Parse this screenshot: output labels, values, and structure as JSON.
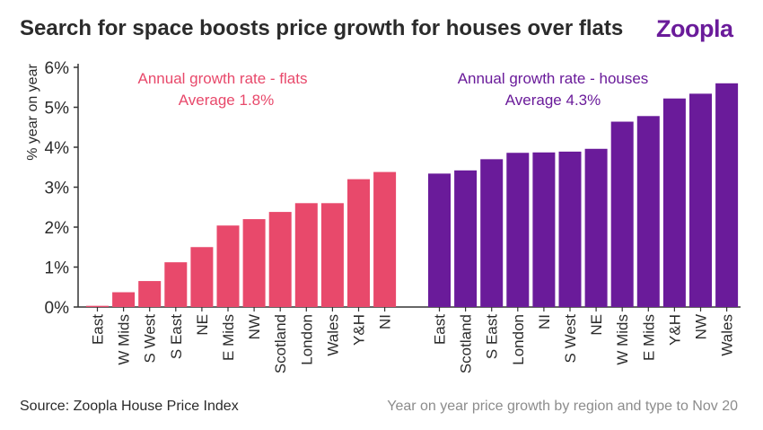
{
  "header": {
    "title": "Search for space boosts price growth for houses over flats",
    "logo": "Zoopla"
  },
  "footer": {
    "source": "Source: Zoopla House Price Index",
    "note": "Year on year price growth by region and type to Nov 20"
  },
  "colors": {
    "flats": "#e8496b",
    "houses": "#6a1b9a",
    "text": "#2b2b2b",
    "axis": "#333333"
  },
  "chart_data": {
    "type": "bar",
    "ylabel": "% year on year",
    "ylim": [
      0,
      6
    ],
    "yticks": [
      0,
      1,
      2,
      3,
      4,
      5,
      6
    ],
    "ytick_labels": [
      "0%",
      "1%",
      "2%",
      "3%",
      "4%",
      "5%",
      "6%"
    ],
    "grid": false,
    "series": [
      {
        "name": "Annual growth rate - flats",
        "annotation": "Average 1.8%",
        "categories": [
          "East",
          "W Mids",
          "S West",
          "S East",
          "NE",
          "E Mids",
          "NW",
          "Scotland",
          "London",
          "Wales",
          "Y&H",
          "NI"
        ],
        "values": [
          0.03,
          0.37,
          0.65,
          1.12,
          1.5,
          2.04,
          2.2,
          2.38,
          2.6,
          2.6,
          3.2,
          3.38
        ]
      },
      {
        "name": "Annual growth rate - houses",
        "annotation": "Average 4.3%",
        "categories": [
          "East",
          "Scotland",
          "S East",
          "London",
          "NI",
          "S West",
          "NE",
          "W Mids",
          "E Mids",
          "Y&H",
          "NW",
          "Wales"
        ],
        "values": [
          3.34,
          3.42,
          3.7,
          3.86,
          3.87,
          3.89,
          3.96,
          4.64,
          4.78,
          5.22,
          5.34,
          5.6
        ]
      }
    ]
  }
}
